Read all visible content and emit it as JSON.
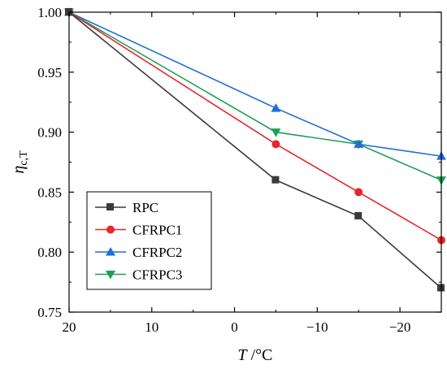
{
  "chart_data": {
    "type": "line",
    "x": [
      20,
      -5,
      -15,
      -25
    ],
    "xlim": [
      20,
      -25
    ],
    "ylim": [
      0.75,
      1.0
    ],
    "xticks": [
      20,
      10,
      0,
      -10,
      -20
    ],
    "yticks": [
      0.75,
      0.8,
      0.85,
      0.9,
      0.95,
      1.0
    ],
    "xtick_labels": [
      "20",
      "10",
      "0",
      "−10",
      "−20"
    ],
    "ytick_labels": [
      "0.75",
      "0.80",
      "0.85",
      "0.90",
      "0.95",
      "1.00"
    ],
    "xlabel": {
      "italic": "T",
      "unit": " /°C"
    },
    "ylabel": {
      "symbol": "η",
      "subscript": "c,T"
    },
    "grid": false,
    "legend_position": "lower-left",
    "series": [
      {
        "name": "RPC",
        "color": "#3a3a3a",
        "marker": "square",
        "values": [
          1.0,
          0.86,
          0.83,
          0.77
        ]
      },
      {
        "name": "CFRPC1",
        "color": "#e8262a",
        "marker": "circle",
        "values": [
          1.0,
          0.89,
          0.85,
          0.81
        ]
      },
      {
        "name": "CFRPC2",
        "color": "#1f6fd6",
        "marker": "triangle-up",
        "values": [
          1.0,
          0.92,
          0.89,
          0.88
        ]
      },
      {
        "name": "CFRPC3",
        "color": "#1e9e5a",
        "marker": "triangle-down",
        "values": [
          1.0,
          0.9,
          0.89,
          0.86
        ]
      }
    ]
  }
}
